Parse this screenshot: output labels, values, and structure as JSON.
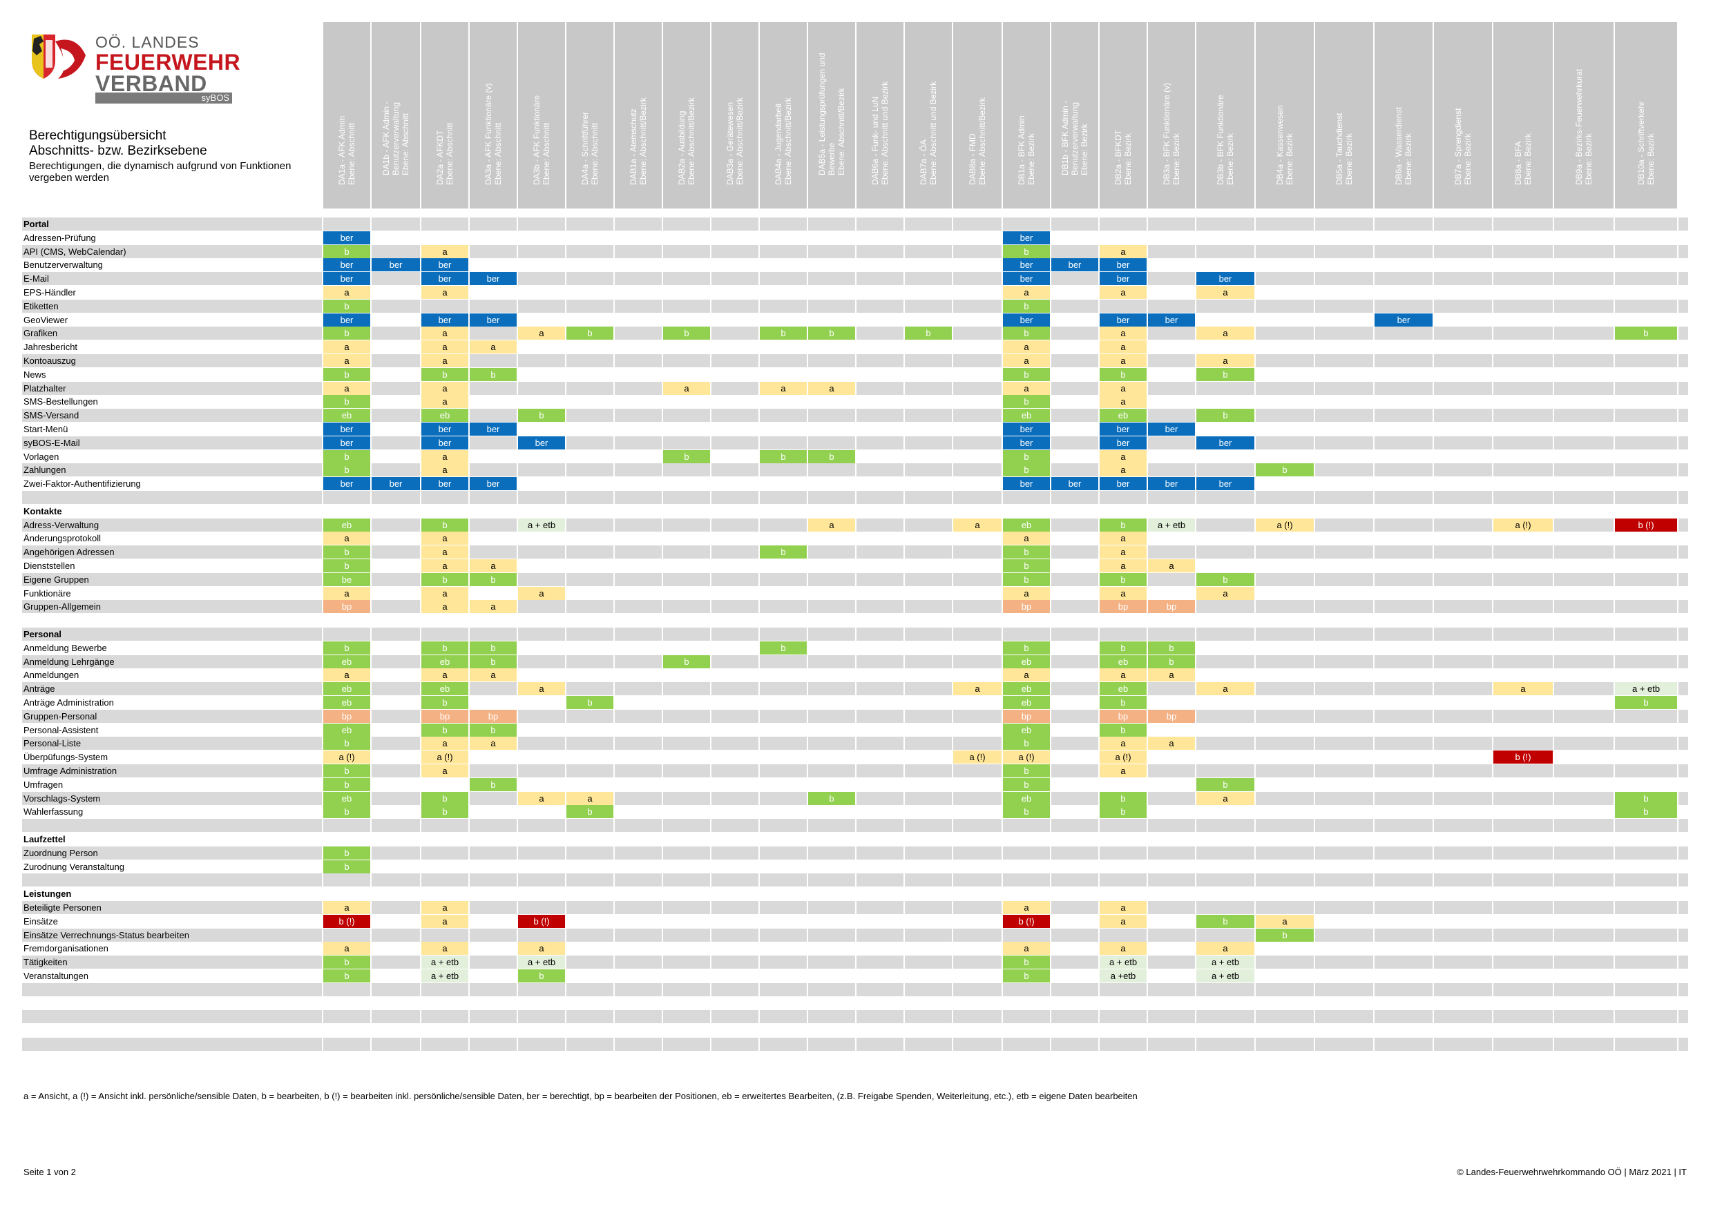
{
  "logo": {
    "line1": "OÖ. LANDES",
    "line2": "FEUERWEHR",
    "line3": "VERBAND",
    "badge": "syBOS"
  },
  "title": {
    "main": "Berechtigungsübersicht",
    "sub": "Abschnitts- bzw. Bezirksebene",
    "desc": "Berechtigungen, die dynamisch aufgrund von Funktionen vergeben werden"
  },
  "columns": [
    "DA1a - AFK Admin\nEbene: Abschnitt",
    "DA1b - AFK Admin -\nBenutzerverwaltung\nEbene: Abschnitt",
    "DA2a - AFKDT\nEbene: Abschnitt",
    "DA3a - AFK Funktionäre (v)\nEbene: Abschnitt",
    "DA3b - AFK Funktionäre\nEbene: Abschnitt",
    "DA4a - Schriftführer\nEbene: Abschnitt",
    "DAB1a - Atemschutz\nEbene: Abschnitt/Bezirk",
    "DAB2a - Ausbildung\nEbene: Abschnitt/Bezirk",
    "DAB3a - Gerätewesen\nEbene: Abschnitt/Bezirk",
    "DAB4a - Jugendarbeit\nEbene: Abschnitt/Bezirk",
    "DAB5a - Leistungsprüfungen und\nBewerbe\nEbene: Abschnitt/Bezirk",
    "DAB6a - Funk- und LuN\nEbene: Abschnitt und Bezirk",
    "DAB7a - ÖA\nEbene: Abschnitt und Bezirk",
    "DAB8a - FMD\nEbene: Abschnitt/Bezirk",
    "DB1a - BFK Admin\nEbene: Bezirk",
    "DB1b - BFK Admin -\nBenutzerverwaltung\nEbene: Bezirk",
    "DB2a - BFKDT\nEbene: Bezirk",
    "DB3a - BFK Funktionäre (v)\nEbene: Bezirk",
    "DB3b - BFK Funktionäre\nEbene: Bezirk",
    "DB4a - Kassenwesen\nEbene: Bezirk",
    "DB5a - Tauchdienst\nEbene: Bezirk",
    "DB6a - Wasserdienst\nEbene: Bezirk",
    "DB7a - Sprengdienst\nEbene: Bezirk",
    "DB8a - BFA\nEbene: Bezirk",
    "DB9a - Bezirks-Feuerwehrkurat\nEbene: Bezirk",
    "DB10a - Schriftverkehr\nEbene: Bezirk"
  ],
  "sections": [
    {
      "name": "Portal",
      "rows": [
        {
          "label": "Adressen-Prüfung",
          "cells": {
            "0": "ber",
            "14": "ber"
          }
        },
        {
          "label": "API (CMS, WebCalendar)",
          "cells": {
            "0": "b",
            "2": "a",
            "14": "b",
            "16": "a"
          }
        },
        {
          "label": "Benutzerverwaltung",
          "cells": {
            "0": "ber",
            "1": "ber",
            "2": "ber",
            "14": "ber",
            "15": "ber",
            "16": "ber"
          }
        },
        {
          "label": "E-Mail",
          "cells": {
            "0": "ber",
            "2": "ber",
            "3": "ber",
            "14": "ber",
            "16": "ber",
            "18": "ber"
          }
        },
        {
          "label": "EPS-Händler",
          "cells": {
            "0": "a",
            "2": "a",
            "14": "a",
            "16": "a",
            "18": "a"
          }
        },
        {
          "label": "Etiketten",
          "cells": {
            "0": "b",
            "14": "b"
          }
        },
        {
          "label": "GeoViewer",
          "cells": {
            "0": "ber",
            "2": "ber",
            "3": "ber",
            "14": "ber",
            "16": "ber",
            "17": "ber",
            "21": "ber"
          }
        },
        {
          "label": "Grafiken",
          "cells": {
            "0": "b",
            "2": "a",
            "4": "a",
            "5": "b",
            "7": "b",
            "9": "b",
            "10": "b",
            "12": "b",
            "14": "b",
            "16": "a",
            "18": "a",
            "25": "b"
          }
        },
        {
          "label": "Jahresbericht",
          "cells": {
            "0": "a",
            "2": "a",
            "3": "a",
            "14": "a",
            "16": "a"
          }
        },
        {
          "label": "Kontoauszug",
          "cells": {
            "0": "a",
            "2": "a",
            "14": "a",
            "16": "a",
            "18": "a"
          }
        },
        {
          "label": "News",
          "cells": {
            "0": "b",
            "2": "b",
            "3": "b",
            "14": "b",
            "16": "b",
            "18": "b"
          }
        },
        {
          "label": "Platzhalter",
          "cells": {
            "0": "a",
            "2": "a",
            "7": "a",
            "9": "a",
            "10": "a",
            "14": "a",
            "16": "a"
          }
        },
        {
          "label": "SMS-Bestellungen",
          "cells": {
            "0": "b",
            "2": "a",
            "14": "b",
            "16": "a"
          }
        },
        {
          "label": "SMS-Versand",
          "cells": {
            "0": "eb",
            "2": "eb",
            "4": "b",
            "14": "eb",
            "16": "eb",
            "18": "b"
          }
        },
        {
          "label": "Start-Menü",
          "cells": {
            "0": "ber",
            "2": "ber",
            "3": "ber",
            "14": "ber",
            "16": "ber",
            "17": "ber"
          }
        },
        {
          "label": "syBOS-E-Mail",
          "cells": {
            "0": "ber",
            "2": "ber",
            "4": "ber",
            "14": "ber",
            "16": "ber",
            "18": "ber"
          }
        },
        {
          "label": "Vorlagen",
          "cells": {
            "0": "b",
            "2": "a",
            "7": "b",
            "9": "b",
            "10": "b",
            "14": "b",
            "16": "a"
          }
        },
        {
          "label": "Zahlungen",
          "cells": {
            "0": "b",
            "2": "a",
            "14": "b",
            "16": "a",
            "19": "b"
          }
        },
        {
          "label": "Zwei-Faktor-Authentifizierung",
          "cells": {
            "0": "ber",
            "1": "ber",
            "2": "ber",
            "3": "ber",
            "14": "ber",
            "15": "ber",
            "16": "ber",
            "17": "ber",
            "18": "ber"
          }
        }
      ]
    },
    {
      "name": "Kontakte",
      "rows": [
        {
          "label": "Adress-Verwaltung",
          "cells": {
            "0": "eb",
            "2": "b",
            "4": "a + etb",
            "10": "a",
            "13": "a",
            "14": "eb",
            "16": "b",
            "17": "a + etb",
            "19": "a (!)",
            "23": "a (!)",
            "25": "b (!)"
          }
        },
        {
          "label": "Änderungsprotokoll",
          "cells": {
            "0": "a",
            "2": "a",
            "14": "a",
            "16": "a"
          }
        },
        {
          "label": "Angehörigen Adressen",
          "cells": {
            "0": "b",
            "2": "a",
            "9": "b",
            "14": "b",
            "16": "a"
          }
        },
        {
          "label": "Dienststellen",
          "cells": {
            "0": "b",
            "2": "a",
            "3": "a",
            "14": "b",
            "16": "a",
            "17": "a"
          }
        },
        {
          "label": "Eigene Gruppen",
          "cells": {
            "0": "be",
            "2": "b",
            "3": "b",
            "14": "b",
            "16": "b",
            "18": "b"
          }
        },
        {
          "label": "Funktionäre",
          "cells": {
            "0": "a",
            "2": "a",
            "4": "a",
            "14": "a",
            "16": "a",
            "18": "a"
          }
        },
        {
          "label": "Gruppen-Allgemein",
          "cells": {
            "0": "bp",
            "2": "a",
            "3": "a",
            "14": "bp",
            "16": "bp",
            "17": "bp"
          }
        }
      ]
    },
    {
      "name": "Personal",
      "rows": [
        {
          "label": "Anmeldung Bewerbe",
          "cells": {
            "0": "b",
            "2": "b",
            "3": "b",
            "9": "b",
            "14": "b",
            "16": "b",
            "17": "b"
          }
        },
        {
          "label": "Anmeldung Lehrgänge",
          "cells": {
            "0": "eb",
            "2": "eb",
            "3": "b",
            "7": "b",
            "14": "eb",
            "16": "eb",
            "17": "b"
          }
        },
        {
          "label": "Anmeldungen",
          "cells": {
            "0": "a",
            "2": "a",
            "3": "a",
            "14": "a",
            "16": "a",
            "17": "a"
          }
        },
        {
          "label": "Anträge",
          "cells": {
            "0": "eb",
            "2": "eb",
            "4": "a",
            "13": "a",
            "14": "eb",
            "16": "eb",
            "18": "a",
            "23": "a",
            "25": "a + etb"
          }
        },
        {
          "label": "Anträge Administration",
          "cells": {
            "0": "eb",
            "2": "b",
            "5": "b",
            "14": "eb",
            "16": "b",
            "25": "b"
          }
        },
        {
          "label": "Gruppen-Personal",
          "cells": {
            "0": "bp",
            "2": "bp",
            "3": "bp",
            "14": "bp",
            "16": "bp",
            "17": "bp"
          }
        },
        {
          "label": "Personal-Assistent",
          "cells": {
            "0": "eb",
            "2": "b",
            "3": "b",
            "14": "eb",
            "16": "b"
          }
        },
        {
          "label": "Personal-Liste",
          "cells": {
            "0": "b",
            "2": "a",
            "3": "a",
            "14": "b",
            "16": "a",
            "17": "a"
          }
        },
        {
          "label": "Überpüfungs-System",
          "cells": {
            "0": "a (!)",
            "2": "a (!)",
            "13": "a (!)",
            "14": "a (!)",
            "16": "a (!)",
            "23": "b (!)"
          }
        },
        {
          "label": "Umfrage Administration",
          "cells": {
            "0": "b",
            "2": "a",
            "14": "b",
            "16": "a"
          }
        },
        {
          "label": "Umfragen",
          "cells": {
            "0": "b",
            "3": "b",
            "14": "b",
            "18": "b"
          }
        },
        {
          "label": "Vorschlags-System",
          "cells": {
            "0": "eb",
            "2": "b",
            "4": "a",
            "5": "a",
            "10": "b",
            "14": "eb",
            "16": "b",
            "18": "a",
            "25": "b"
          }
        },
        {
          "label": "Wahlerfassung",
          "cells": {
            "0": "b",
            "2": "b",
            "5": "b",
            "14": "b",
            "16": "b",
            "25": "b"
          }
        }
      ]
    },
    {
      "name": "Laufzettel",
      "rows": [
        {
          "label": "Zuordnung Person",
          "cells": {
            "0": "b"
          }
        },
        {
          "label": "Zurodnung Veranstaltung",
          "cells": {
            "0": "b"
          }
        }
      ]
    },
    {
      "name": "Leistungen",
      "rows": [
        {
          "label": "Beteiligte Personen",
          "cells": {
            "0": "a",
            "2": "a",
            "14": "a",
            "16": "a"
          }
        },
        {
          "label": "Einsätze",
          "cells": {
            "0": "b (!)",
            "2": "a",
            "4": "b (!)",
            "14": "b (!)",
            "16": "a",
            "18": "b",
            "19": "a"
          }
        },
        {
          "label": "Einsätze Verrechnungs-Status bearbeiten",
          "cells": {
            "19": "b"
          }
        },
        {
          "label": "Fremdorganisationen",
          "cells": {
            "0": "a",
            "2": "a",
            "4": "a",
            "14": "a",
            "16": "a",
            "18": "a"
          }
        },
        {
          "label": "Tätigkeiten",
          "cells": {
            "0": "b",
            "2": "a + etb",
            "4": "a + etb",
            "14": "b",
            "16": "a + etb",
            "18": "a + etb"
          }
        },
        {
          "label": "Veranstaltungen",
          "cells": {
            "0": "b",
            "2": "a + etb",
            "4": "b",
            "14": "b",
            "16": "a +etb",
            "18": "a + etb"
          }
        }
      ]
    }
  ],
  "legend": "a = Ansicht, a (!) = Ansicht inkl. persönliche/sensible Daten, b = bearbeiten, b (!) = bearbeiten inkl. persönliche/sensible Daten, ber = berechtigt, bp = bearbeiten der Positionen, eb = erweitertes Bearbeiten, (z.B. Freigabe Spenden, Weiterleitung, etc.), etb = eigene Daten bearbeiten",
  "footer": {
    "page": "Seite 1 von 2",
    "copyright": "© Landes-Feuerwehrwehrkommando OÖ | März 2021 | IT"
  },
  "colors": {
    "ber": "#0a6ebd",
    "b": "#92d050",
    "a": "#ffe699",
    "bp": "#f4b183",
    "bi": "#c00000",
    "etb": "#e2efda",
    "header": "#c8c8c8",
    "stripe": "#d9d9d9"
  }
}
